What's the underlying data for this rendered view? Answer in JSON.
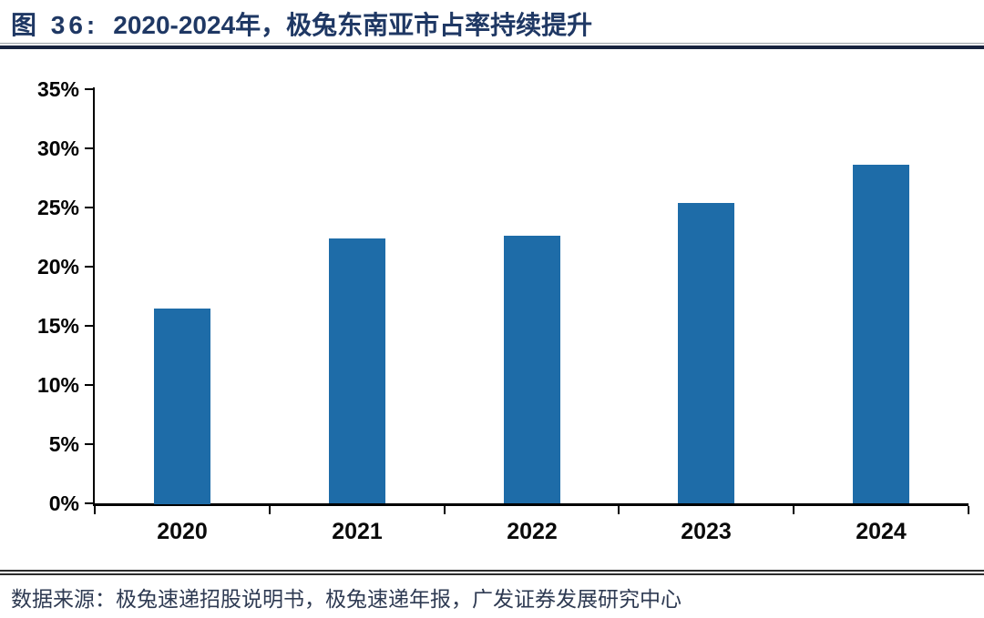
{
  "figure": {
    "label": "图 36:",
    "title": "2020-2024年，极兔东南亚市占率持续提升"
  },
  "chart_data": {
    "type": "bar",
    "categories": [
      "2020",
      "2021",
      "2022",
      "2023",
      "2024"
    ],
    "values": [
      16.5,
      22.4,
      22.6,
      25.4,
      28.6
    ],
    "series_name": "极兔东南亚市占率",
    "title": "2020-2024年，极兔东南亚市占率持续提升",
    "xlabel": "",
    "ylabel": "",
    "ylim": [
      0,
      35
    ],
    "ytick_step": 5,
    "ytick_labels": [
      "0%",
      "5%",
      "10%",
      "15%",
      "20%",
      "25%",
      "30%",
      "35%"
    ],
    "grid": false,
    "legend": "none",
    "bar_color": "#1E6CA8",
    "axis_color": "#000000"
  },
  "source": {
    "text": "数据来源：极兔速递招股说明书，极兔速递年报，广发证券发展研究中心"
  },
  "colors": {
    "title_text": "#1F3864",
    "title_rule": "#17233E",
    "footer_rule": "#2B2B2B",
    "source_text": "#2E3A52",
    "background": "#FFFFFF"
  }
}
